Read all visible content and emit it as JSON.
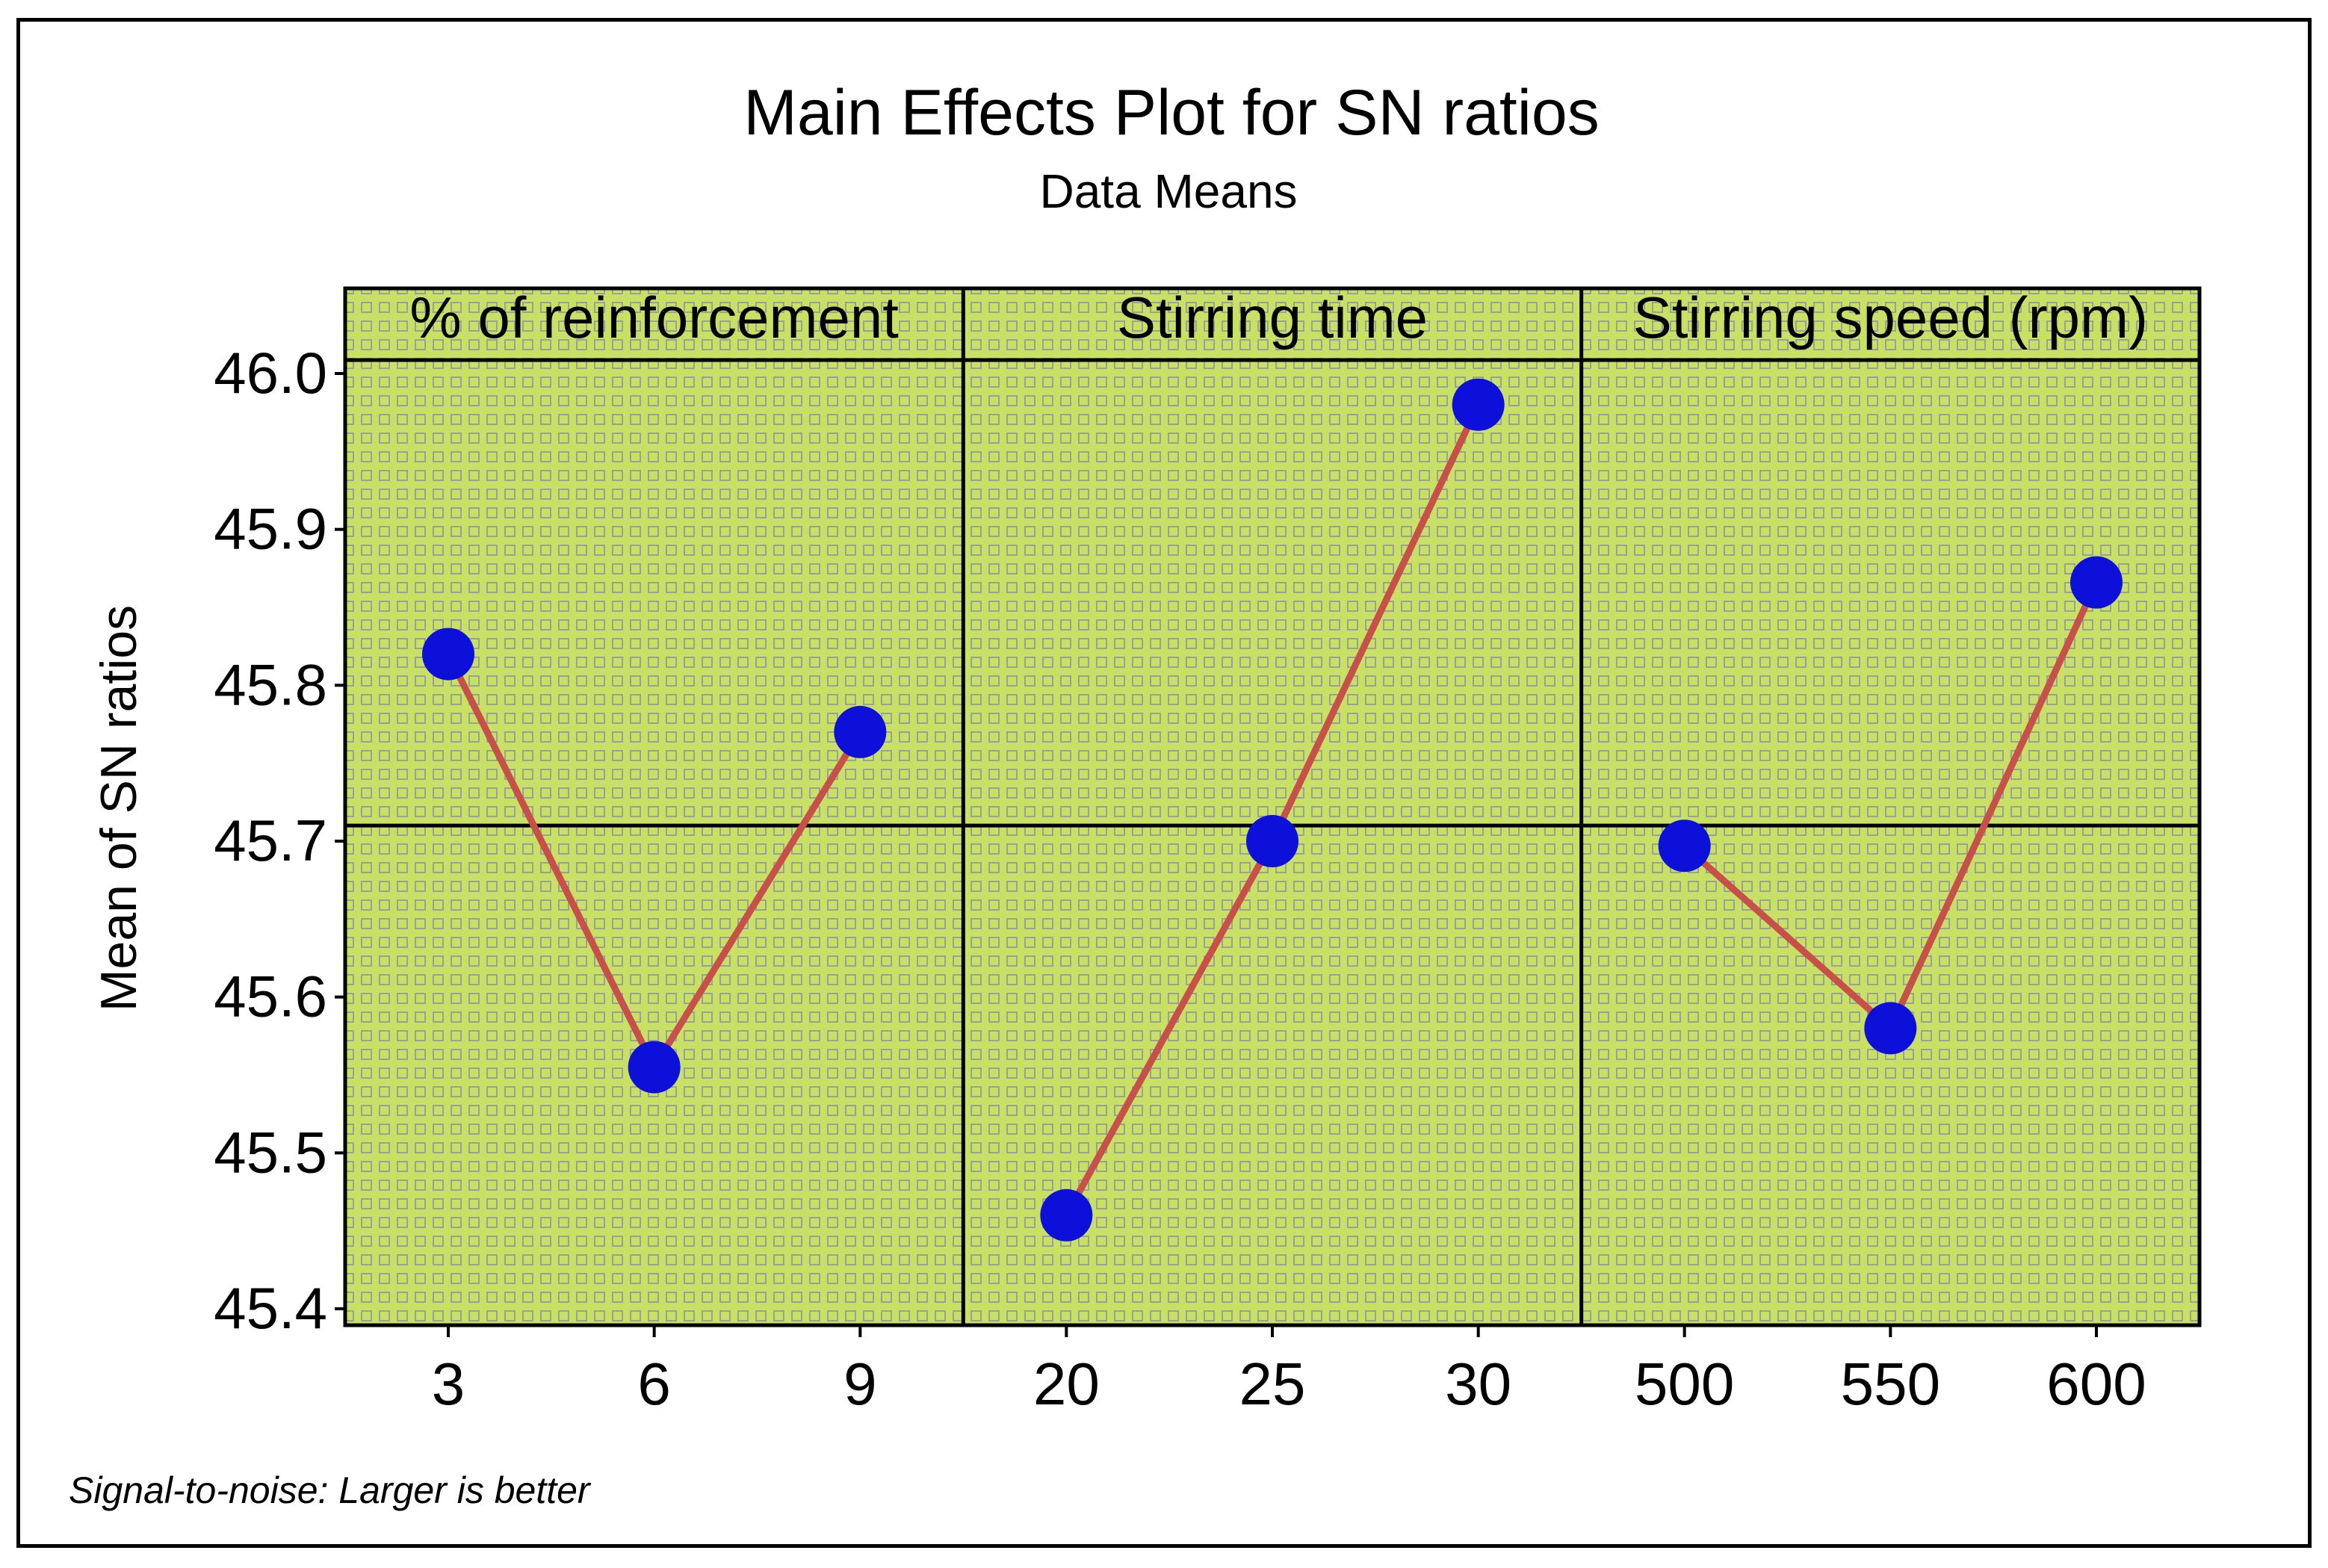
{
  "chart_data": {
    "type": "line",
    "title": "Main Effects Plot for SN ratios",
    "subtitle": "Data Means",
    "ylabel": "Mean of SN ratios",
    "footnote": "Signal-to-noise: Larger is better",
    "ylim": [
      45.4,
      46.05
    ],
    "yticks": [
      "46.0",
      "45.9",
      "45.8",
      "45.7",
      "45.6",
      "45.5",
      "45.4"
    ],
    "reference_line": 45.71,
    "panels": [
      {
        "factor": "% of reinforcement",
        "levels": [
          "3",
          "6",
          "9"
        ],
        "values": [
          45.82,
          45.555,
          45.77
        ]
      },
      {
        "factor": "Stirring time",
        "levels": [
          "20",
          "25",
          "30"
        ],
        "values": [
          45.46,
          45.7,
          45.98
        ]
      },
      {
        "factor": "Stirring speed (rpm)",
        "levels": [
          "500",
          "550",
          "600"
        ],
        "values": [
          45.697,
          45.58,
          45.866
        ]
      }
    ],
    "colors": {
      "panel_bg": "#c8e064",
      "pattern": "#9aa09a",
      "line": "#c8504a",
      "marker": "#0c10d8"
    }
  }
}
